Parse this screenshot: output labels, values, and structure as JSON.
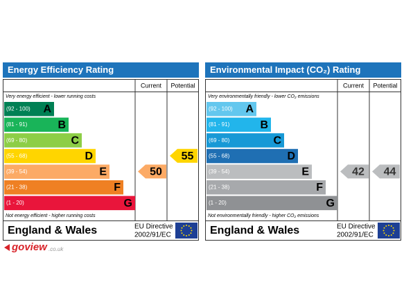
{
  "panels": [
    {
      "title": "Energy Efficiency Rating",
      "headers": {
        "current": "Current",
        "potential": "Potential"
      },
      "top_note": "Very energy efficient - lower running costs",
      "bottom_note": "Not energy efficient - higher running costs",
      "bands": [
        {
          "range": "(92 - 100)",
          "letter": "A",
          "color": "#008054"
        },
        {
          "range": "(81 - 91)",
          "letter": "B",
          "color": "#19b459"
        },
        {
          "range": "(69 - 80)",
          "letter": "C",
          "color": "#8dce46"
        },
        {
          "range": "(55 - 68)",
          "letter": "D",
          "color": "#ffd500"
        },
        {
          "range": "(39 - 54)",
          "letter": "E",
          "color": "#fcaa65"
        },
        {
          "range": "(21 - 38)",
          "letter": "F",
          "color": "#ef8023"
        },
        {
          "range": "(1 - 20)",
          "letter": "G",
          "color": "#e9153b"
        }
      ],
      "current": 50,
      "potential": 55,
      "footer": {
        "country": "England & Wales",
        "directive": "EU Directive",
        "directive_code": "2002/91/EC"
      }
    },
    {
      "title": "Environmental Impact (CO₂) Rating",
      "headers": {
        "current": "Current",
        "potential": "Potential"
      },
      "top_note": "Very environmentally friendly - lower CO₂ emissions",
      "bottom_note": "Not environmentally friendly - higher CO₂ emissions",
      "bands": [
        {
          "range": "(92 - 100)",
          "letter": "A",
          "color": "#63c7ee"
        },
        {
          "range": "(81 - 91)",
          "letter": "B",
          "color": "#22b5eb"
        },
        {
          "range": "(69 - 80)",
          "letter": "C",
          "color": "#1799d6"
        },
        {
          "range": "(55 - 68)",
          "letter": "D",
          "color": "#1f6fb3"
        },
        {
          "range": "(39 - 54)",
          "letter": "E",
          "color": "#bbbdbf"
        },
        {
          "range": "(21 - 38)",
          "letter": "F",
          "color": "#a7a9ac"
        },
        {
          "range": "(1 - 20)",
          "letter": "G",
          "color": "#8f9194"
        }
      ],
      "current": 42,
      "potential": 44,
      "footer": {
        "country": "England & Wales",
        "directive": "EU Directive",
        "directive_code": "2002/91/EC"
      }
    }
  ],
  "logo": {
    "name": "goview",
    "domain": ".co.uk"
  }
}
